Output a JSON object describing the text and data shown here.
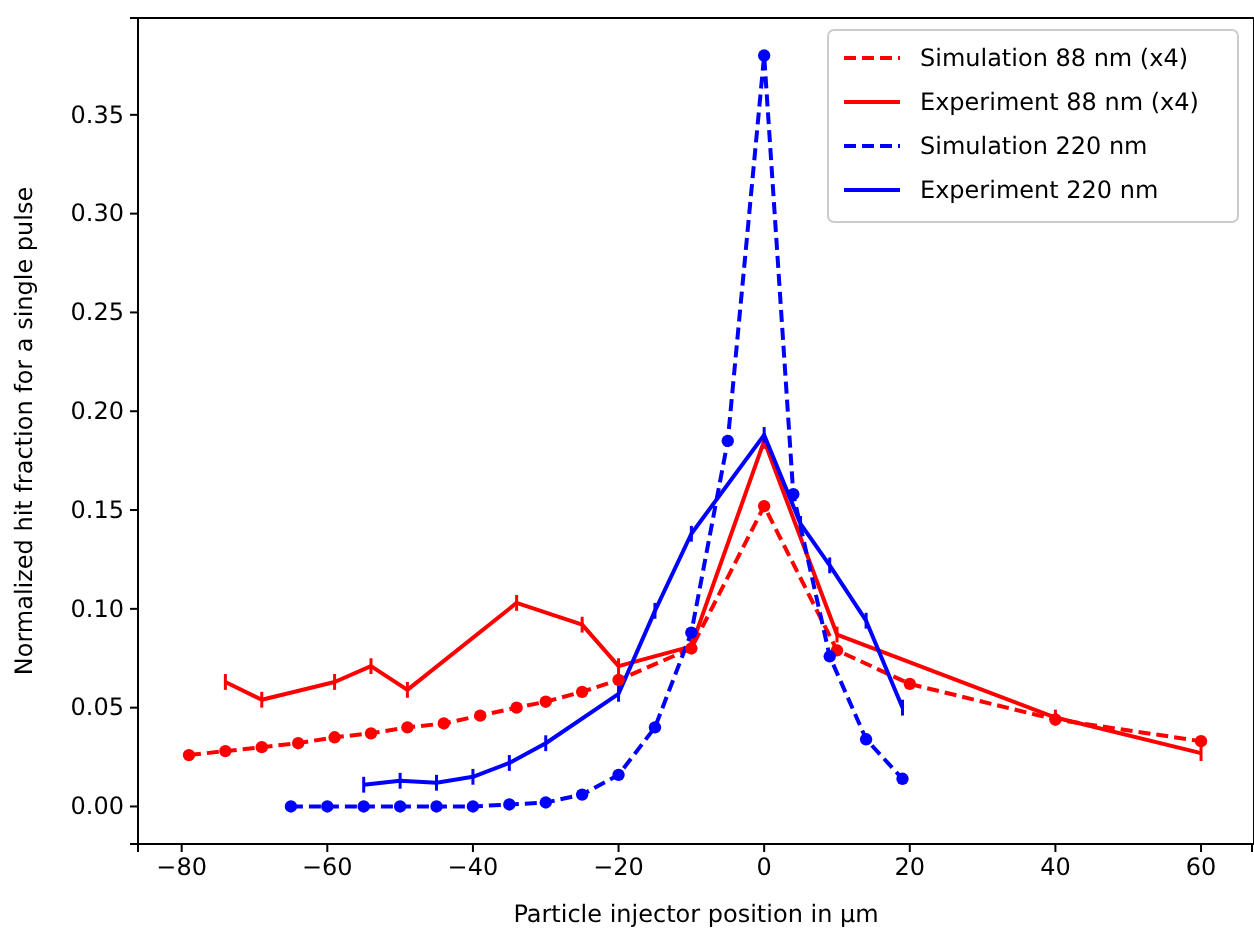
{
  "chart_data": {
    "type": "line",
    "xlabel": "Particle injector position in μm",
    "ylabel": "Normalized hit fraction for a single pulse",
    "xlim": [
      -86,
      67
    ],
    "ylim": [
      -0.019,
      0.399
    ],
    "xticks": [
      -80,
      -60,
      -40,
      -20,
      0,
      20,
      40,
      60
    ],
    "yticks": [
      {
        "value": 0,
        "label": "0.00"
      },
      {
        "value": 0.05,
        "label": "0.05"
      },
      {
        "value": 0.1,
        "label": "0.10"
      },
      {
        "value": 0.15,
        "label": "0.15"
      },
      {
        "value": 0.2,
        "label": "0.20"
      },
      {
        "value": 0.25,
        "label": "0.25"
      },
      {
        "value": 0.3,
        "label": "0.30"
      },
      {
        "value": 0.35,
        "label": "0.35"
      }
    ],
    "grid": false,
    "legend": "top right",
    "series": [
      {
        "name": "Simulation 88 nm (x4)",
        "color": "#ff0000",
        "line_style": "dashed",
        "marker": "circle",
        "x": [
          -79,
          -74,
          -69,
          -64,
          -59,
          -54,
          -49,
          -44,
          -39,
          -34,
          -30,
          -25,
          -20,
          -10,
          0,
          10,
          20,
          40,
          60
        ],
        "values": [
          0.026,
          0.028,
          0.03,
          0.032,
          0.035,
          0.037,
          0.04,
          0.042,
          0.046,
          0.05,
          0.053,
          0.058,
          0.064,
          0.08,
          0.152,
          0.079,
          0.062,
          0.044,
          0.033
        ]
      },
      {
        "name": "Experiment 88 nm (x4)",
        "color": "#ff0000",
        "line_style": "solid",
        "marker": "none",
        "x": [
          -74,
          -69,
          -59,
          -54,
          -49,
          -34,
          -25,
          -20,
          -10,
          0,
          10,
          40,
          60
        ],
        "values": [
          0.063,
          0.054,
          0.063,
          0.071,
          0.059,
          0.103,
          0.092,
          0.071,
          0.081,
          0.185,
          0.087,
          0.045,
          0.027
        ],
        "errors": [
          0.004,
          0.004,
          0.004,
          0.004,
          0.004,
          0.004,
          0.004,
          0.004,
          0.004,
          0.004,
          0.004,
          0.004,
          0.004
        ]
      },
      {
        "name": "Simulation 220 nm",
        "color": "#0000ff",
        "line_style": "dashed",
        "marker": "circle",
        "x": [
          -65,
          -60,
          -55,
          -50,
          -45,
          -40,
          -35,
          -30,
          -25,
          -20,
          -15,
          -10,
          -5,
          0,
          4,
          9,
          14,
          19
        ],
        "values": [
          0,
          0,
          0,
          0,
          0,
          0,
          0.001,
          0.002,
          0.006,
          0.016,
          0.04,
          0.088,
          0.185,
          0.38,
          0.158,
          0.076,
          0.034,
          0.014
        ]
      },
      {
        "name": "Experiment 220 nm",
        "color": "#0000ff",
        "line_style": "solid",
        "marker": "none",
        "x": [
          -55,
          -50,
          -45,
          -40,
          -35,
          -30,
          -20,
          -15,
          -10,
          0,
          5,
          9,
          14,
          19
        ],
        "values": [
          0.011,
          0.013,
          0.012,
          0.015,
          0.022,
          0.032,
          0.057,
          0.099,
          0.138,
          0.188,
          0.143,
          0.122,
          0.094,
          0.05
        ],
        "errors": [
          0.004,
          0.004,
          0.004,
          0.004,
          0.004,
          0.004,
          0.004,
          0.004,
          0.004,
          0.004,
          0.004,
          0.004,
          0.004,
          0.004
        ]
      }
    ]
  }
}
